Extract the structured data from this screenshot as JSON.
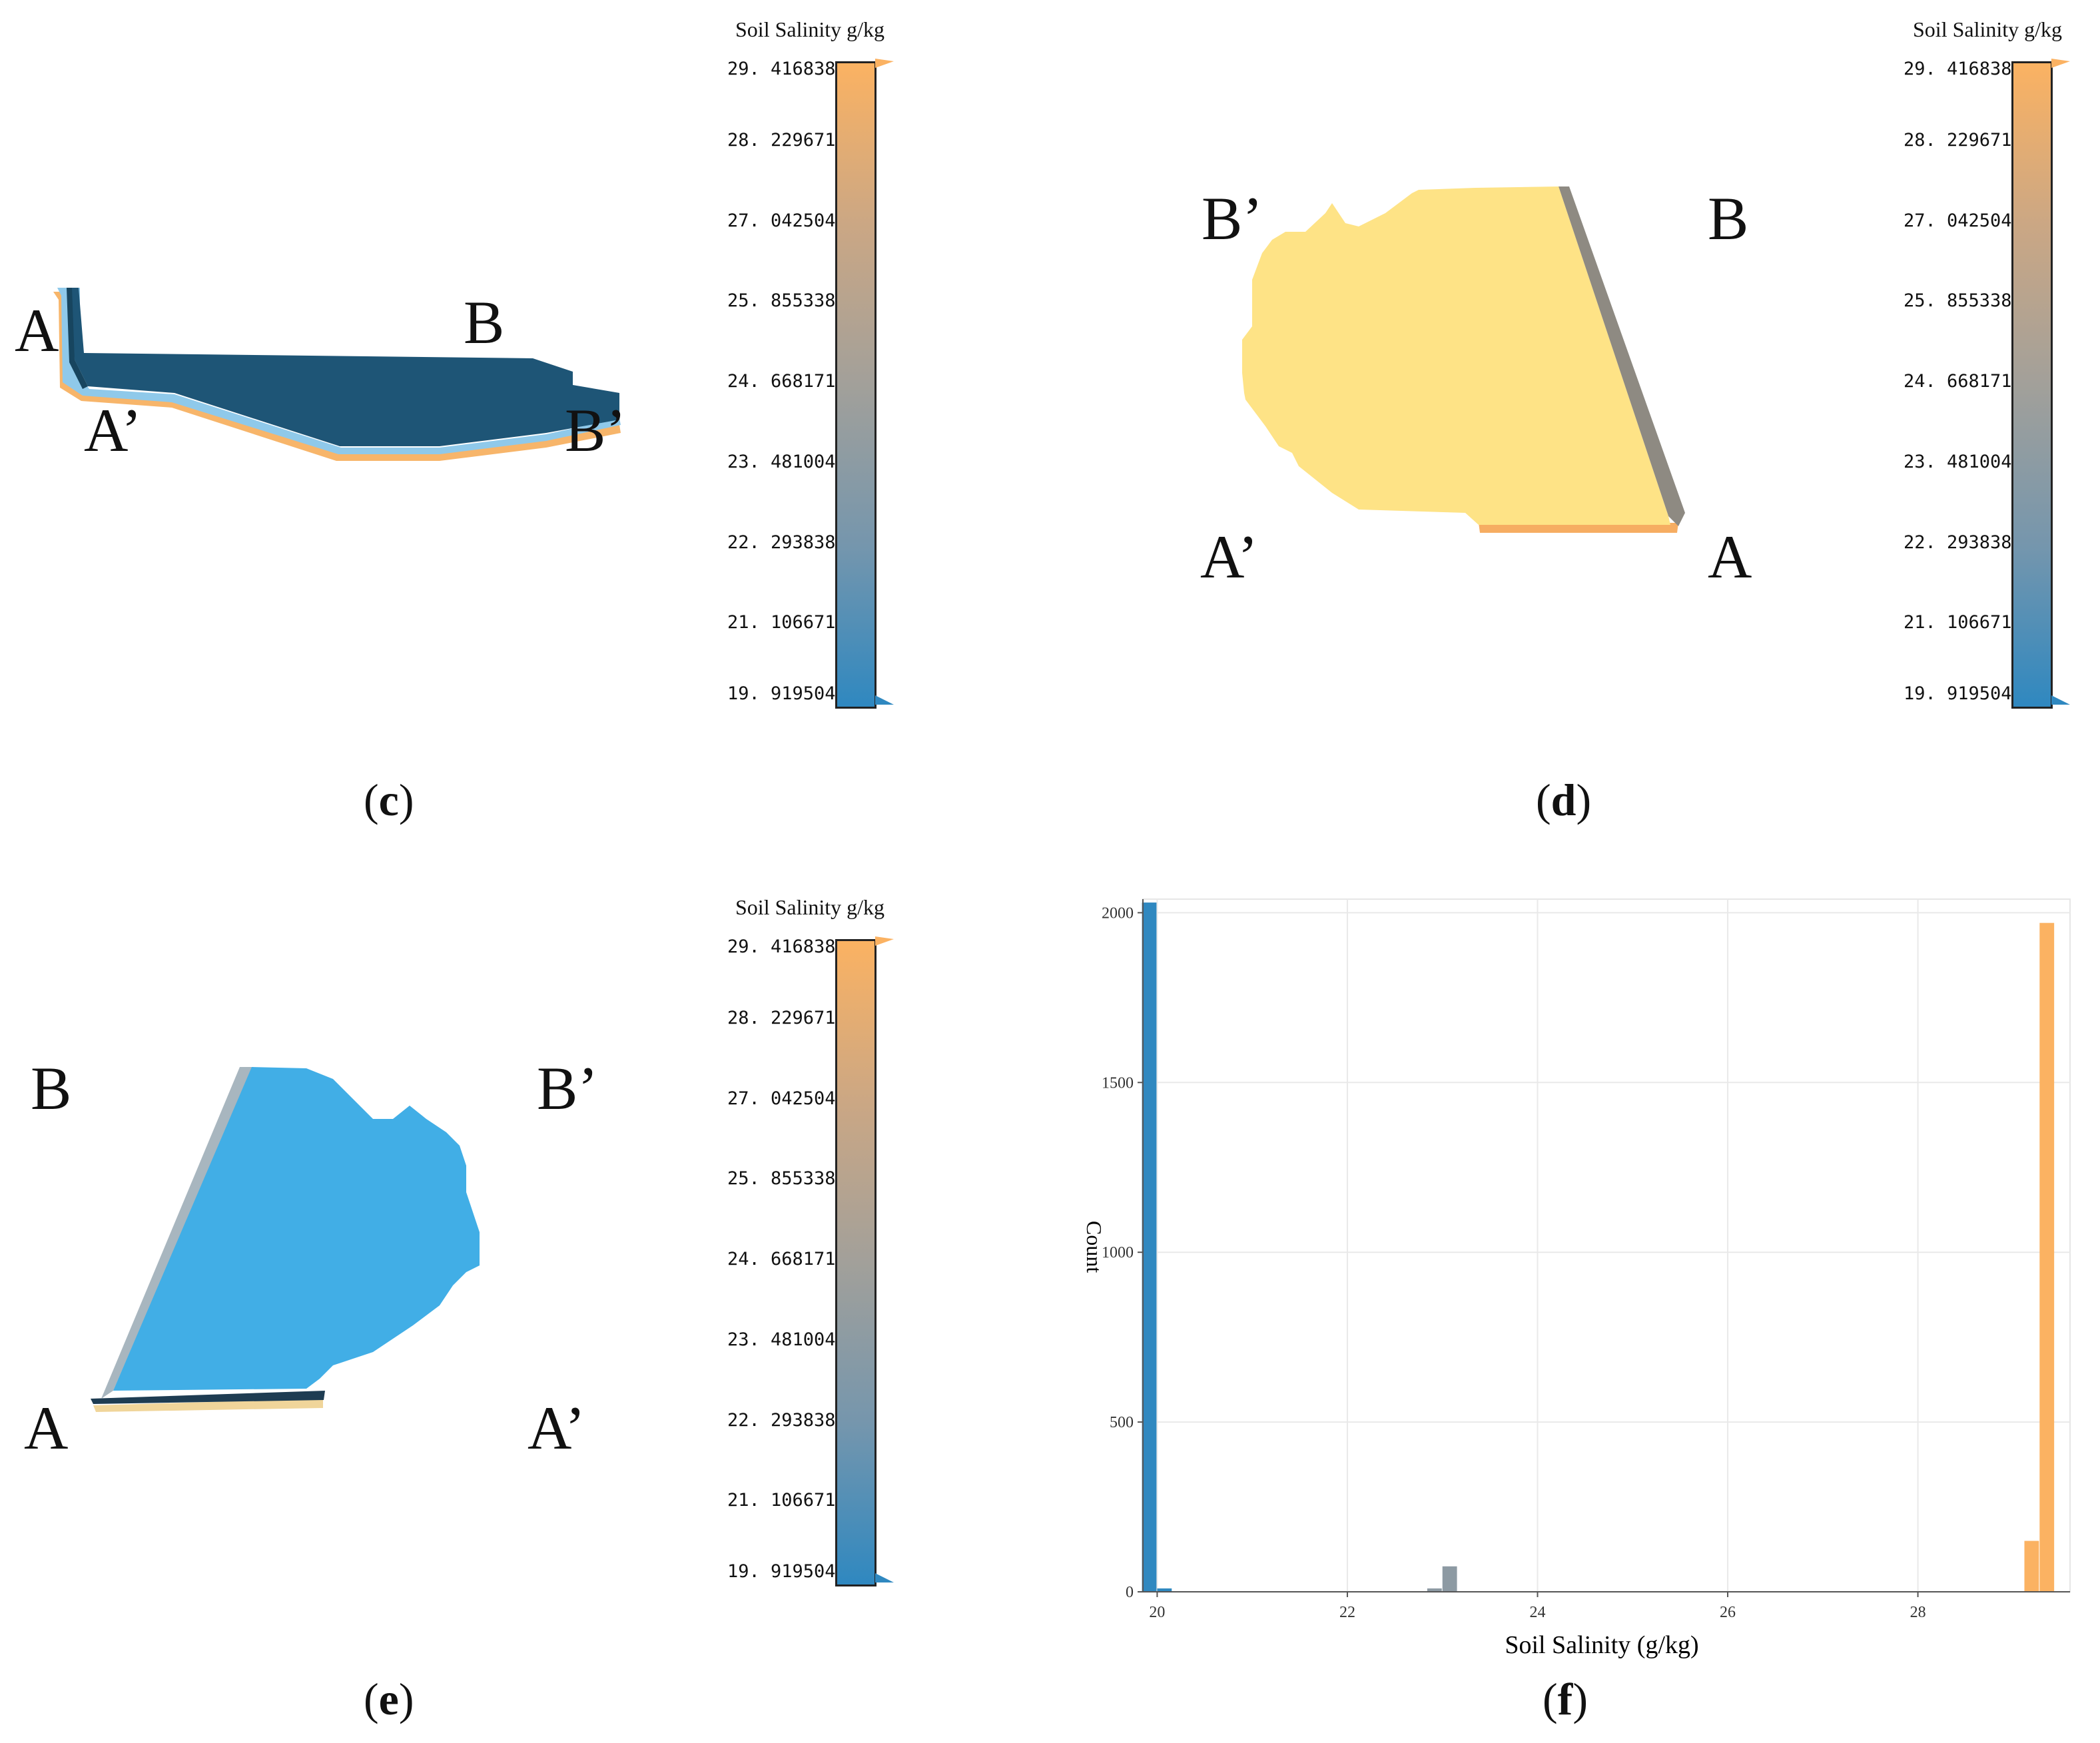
{
  "colors": {
    "orange": "#fbb262",
    "blue": "#2f88c0",
    "gray": "#8d9aa3",
    "dark_slab": "#1e5576",
    "yellow_face": "#fee386",
    "cyan_face": "#41aee6"
  },
  "panels": {
    "c": {
      "label_open": "(",
      "label_letter": "c",
      "label_close": ")",
      "points": {
        "a": "A",
        "b": "B",
        "a_prime": "A’",
        "b_prime": "B’"
      },
      "legend": {
        "title": "Soil Salinity g/kg",
        "ticks": [
          "29. 416838",
          "28. 229671",
          "27. 042504",
          "25. 855338",
          "24. 668171",
          "23. 481004",
          "22. 293838",
          "21. 106671",
          "19. 919504"
        ]
      }
    },
    "d": {
      "label_open": "(",
      "label_letter": "d",
      "label_close": ")",
      "points": {
        "b_prime": "B’",
        "b": "B",
        "a_prime": "A’",
        "a": "A"
      },
      "legend": {
        "title": "Soil Salinity g/kg",
        "ticks": [
          "29. 416838",
          "28. 229671",
          "27. 042504",
          "25. 855338",
          "24. 668171",
          "23. 481004",
          "22. 293838",
          "21. 106671",
          "19. 919504"
        ]
      }
    },
    "e": {
      "label_open": "(",
      "label_letter": "e",
      "label_close": ")",
      "points": {
        "b": "B",
        "b_prime": "B’",
        "a": "A",
        "a_prime": "A’"
      },
      "legend": {
        "title": "Soil Salinity g/kg",
        "ticks": [
          "29. 416838",
          "28. 229671",
          "27. 042504",
          "25. 855338",
          "24. 668171",
          "23. 481004",
          "22. 293838",
          "21. 106671",
          "19. 919504"
        ]
      }
    },
    "f": {
      "label_open": "(",
      "label_letter": "f",
      "label_close": ")"
    }
  },
  "chart_data": {
    "type": "bar",
    "xlabel": "Soil Salinity (g/kg)",
    "ylabel": "Count",
    "xlim": [
      19.85,
      29.6
    ],
    "ylim": [
      0,
      2040
    ],
    "x_ticks": [
      20,
      22,
      24,
      26,
      28
    ],
    "y_ticks": [
      0,
      500,
      1000,
      1500,
      2000
    ],
    "grid": true,
    "bin_width": 0.16,
    "bars": [
      {
        "x": 19.92,
        "value": 2030,
        "color": "#2f88c0"
      },
      {
        "x": 20.08,
        "value": 10,
        "color": "#2f88c0"
      },
      {
        "x": 22.92,
        "value": 10,
        "color": "#8d9aa3"
      },
      {
        "x": 23.08,
        "value": 75,
        "color": "#8d9aa3"
      },
      {
        "x": 29.2,
        "value": 150,
        "color": "#fbb262"
      },
      {
        "x": 29.36,
        "value": 1970,
        "color": "#fbb262"
      }
    ]
  }
}
